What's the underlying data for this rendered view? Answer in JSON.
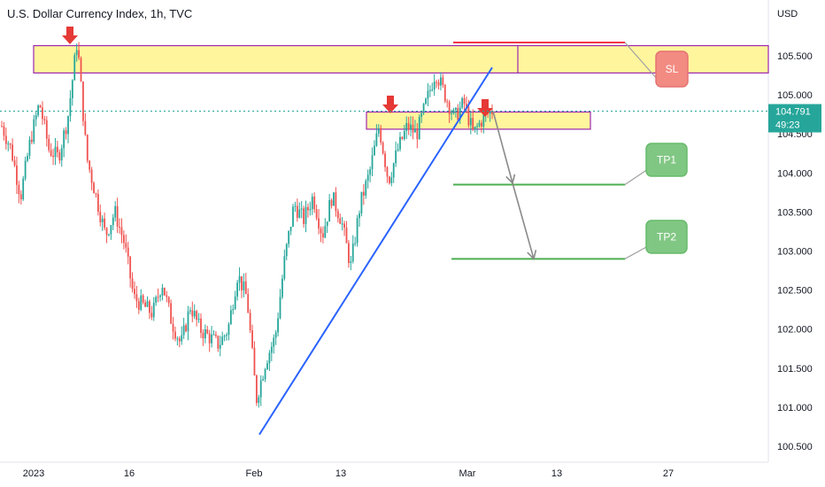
{
  "header": {
    "title": "U.S. Dollar Currency Index, 1h, TVC"
  },
  "chart_data": {
    "type": "candlestick",
    "title": "U.S. Dollar Currency Index, 1h, TVC",
    "y_axis_unit": "USD",
    "y_ticks": [
      "100.500",
      "101.000",
      "101.500",
      "102.000",
      "102.500",
      "103.000",
      "103.500",
      "104.000",
      "104.500",
      "105.000",
      "105.500"
    ],
    "ylim": [
      100.45,
      106.0
    ],
    "x_ticks": [
      "2023",
      "16",
      "Feb",
      "13",
      "Mar",
      "13",
      "27"
    ],
    "last_price": "104.791",
    "countdown": "49:23",
    "price_path": [
      [
        0,
        104.6
      ],
      [
        4,
        104.3
      ],
      [
        8,
        103.7
      ],
      [
        12,
        104.4
      ],
      [
        16,
        104.9
      ],
      [
        20,
        104.3
      ],
      [
        24,
        104.2
      ],
      [
        28,
        104.7
      ],
      [
        32,
        105.7
      ],
      [
        36,
        104.2
      ],
      [
        40,
        103.7
      ],
      [
        44,
        103.2
      ],
      [
        48,
        103.5
      ],
      [
        52,
        103.1
      ],
      [
        56,
        102.4
      ],
      [
        60,
        102.3
      ],
      [
        64,
        102.2
      ],
      [
        68,
        102.6
      ],
      [
        72,
        102.1
      ],
      [
        76,
        101.8
      ],
      [
        80,
        102.3
      ],
      [
        84,
        102.0
      ],
      [
        88,
        101.9
      ],
      [
        92,
        101.8
      ],
      [
        96,
        102.0
      ],
      [
        100,
        102.7
      ],
      [
        104,
        102.4
      ],
      [
        108,
        101.1
      ],
      [
        112,
        101.6
      ],
      [
        116,
        101.9
      ],
      [
        120,
        102.9
      ],
      [
        124,
        103.6
      ],
      [
        128,
        103.4
      ],
      [
        132,
        103.7
      ],
      [
        136,
        103.2
      ],
      [
        140,
        103.7
      ],
      [
        144,
        103.4
      ],
      [
        148,
        102.8
      ],
      [
        152,
        103.6
      ],
      [
        156,
        104.0
      ],
      [
        160,
        104.6
      ],
      [
        164,
        103.9
      ],
      [
        168,
        104.3
      ],
      [
        172,
        104.6
      ],
      [
        176,
        104.5
      ],
      [
        180,
        104.9
      ],
      [
        184,
        105.3
      ],
      [
        188,
        105.0
      ],
      [
        192,
        104.7
      ],
      [
        196,
        104.9
      ],
      [
        200,
        104.5
      ],
      [
        204,
        104.7
      ],
      [
        208,
        104.8
      ]
    ],
    "zones": [
      {
        "low": 105.28,
        "high": 105.63
      },
      {
        "low": 104.56,
        "high": 104.78
      }
    ],
    "levels": [
      {
        "label": "SL",
        "value": 105.67,
        "color": "#f23645"
      },
      {
        "label": "TP1",
        "value": 103.85,
        "color": "#4caf50"
      },
      {
        "label": "TP2",
        "value": 102.9,
        "color": "#4caf50"
      }
    ],
    "trendline": {
      "from": 100.65,
      "to": 105.35,
      "color": "#2962ff"
    },
    "grid": false
  },
  "colors": {
    "up": "#26a69a",
    "down": "#ef5350",
    "zone_fill": "#fff59d",
    "zone_border": "#9c27b0",
    "arrow": "#e53935"
  },
  "icons": [
    "down-arrow-marker-icon"
  ]
}
